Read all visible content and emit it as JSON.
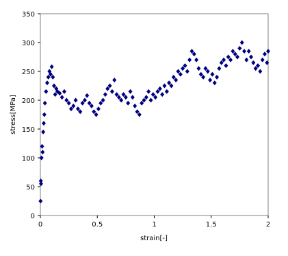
{
  "chart_data": {
    "type": "scatter",
    "x_label": "strain[-]",
    "y_label": "stress[MPa]",
    "color": "#000080",
    "x": [
      0.002,
      0.004,
      0.006,
      0.01,
      0.015,
      0.02,
      0.025,
      0.03,
      0.035,
      0.04,
      0.05,
      0.06,
      0.07,
      0.08,
      0.09,
      0.1,
      0.11,
      0.12,
      0.13,
      0.14,
      0.15,
      0.17,
      0.19,
      0.21,
      0.23,
      0.25,
      0.27,
      0.29,
      0.31,
      0.33,
      0.35,
      0.37,
      0.39,
      0.41,
      0.43,
      0.45,
      0.47,
      0.49,
      0.51,
      0.53,
      0.55,
      0.57,
      0.59,
      0.61,
      0.63,
      0.65,
      0.67,
      0.69,
      0.71,
      0.73,
      0.75,
      0.77,
      0.79,
      0.81,
      0.83,
      0.85,
      0.87,
      0.89,
      0.91,
      0.93,
      0.95,
      0.97,
      0.99,
      1.01,
      1.03,
      1.05,
      1.07,
      1.09,
      1.11,
      1.13,
      1.15,
      1.17,
      1.19,
      1.21,
      1.23,
      1.25,
      1.27,
      1.29,
      1.31,
      1.33,
      1.35,
      1.37,
      1.39,
      1.41,
      1.43,
      1.45,
      1.47,
      1.49,
      1.51,
      1.53,
      1.55,
      1.57,
      1.59,
      1.61,
      1.63,
      1.65,
      1.67,
      1.69,
      1.71,
      1.73,
      1.75,
      1.77,
      1.79,
      1.81,
      1.83,
      1.85,
      1.87,
      1.89,
      1.91,
      1.93,
      1.95,
      1.97,
      1.99,
      2.0
    ],
    "values": [
      25,
      60,
      55,
      100,
      120,
      110,
      145,
      160,
      175,
      195,
      215,
      230,
      240,
      250,
      245,
      258,
      240,
      225,
      210,
      220,
      215,
      212,
      205,
      215,
      200,
      195,
      185,
      190,
      200,
      185,
      180,
      195,
      200,
      208,
      195,
      190,
      180,
      175,
      185,
      195,
      200,
      210,
      220,
      225,
      215,
      235,
      210,
      205,
      200,
      210,
      205,
      195,
      215,
      205,
      190,
      180,
      175,
      195,
      200,
      205,
      215,
      200,
      210,
      205,
      215,
      220,
      210,
      225,
      215,
      230,
      225,
      240,
      235,
      250,
      245,
      255,
      260,
      250,
      270,
      285,
      280,
      270,
      255,
      245,
      240,
      255,
      250,
      235,
      245,
      230,
      240,
      255,
      265,
      270,
      260,
      275,
      270,
      285,
      280,
      275,
      290,
      300,
      285,
      270,
      285,
      275,
      265,
      255,
      260,
      250,
      270,
      280,
      265,
      285
    ],
    "xlim": [
      0,
      2
    ],
    "xticks": [
      0,
      0.5,
      1,
      1.5,
      2
    ],
    "ylim": [
      0,
      350
    ],
    "yticks": [
      0,
      50,
      100,
      150,
      200,
      250,
      300,
      350
    ]
  }
}
